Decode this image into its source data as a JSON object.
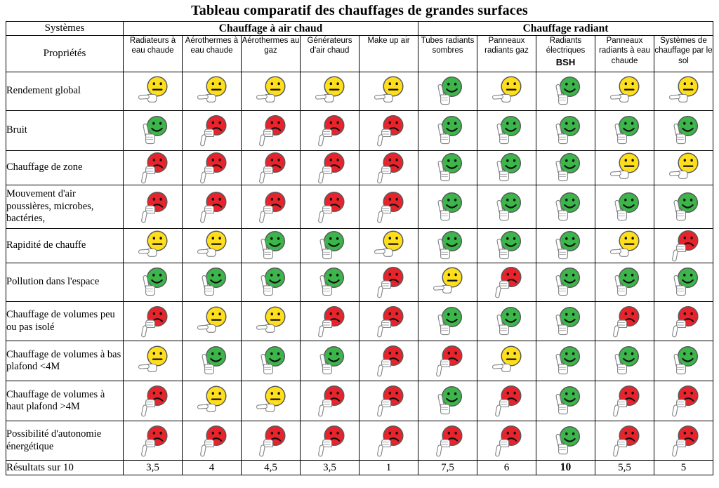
{
  "title": "Tableau comparatif des chauffages de grandes surfaces",
  "colors": {
    "green": "#3cb54b",
    "yellow": "#ffdf1b",
    "red": "#e8232b",
    "face_outline": "#58595b",
    "hand_fill": "#ffffff",
    "hand_stroke": "#808285",
    "feature_ink": "#101010",
    "table_border": "#000000"
  },
  "icons": {
    "green": "smiley-happy-thumb-up-icon",
    "yellow": "smiley-neutral-thumb-side-icon",
    "red": "smiley-sad-thumb-down-icon"
  },
  "header": {
    "systems_label": "Systèmes",
    "properties_label": "Propriétés",
    "groups": [
      {
        "label": "Chauffage à air chaud",
        "span": 5
      },
      {
        "label": "Chauffage radiant",
        "span": 5
      }
    ],
    "columns": [
      {
        "label": "Radiateurs à eau chaude"
      },
      {
        "label": "Aérothermes à eau chaude"
      },
      {
        "label": "Aérothermes au gaz"
      },
      {
        "label": "Générateurs d'air chaud"
      },
      {
        "label": "Make up air"
      },
      {
        "label": "Tubes radiants sombres"
      },
      {
        "label": "Panneaux radiants gaz"
      },
      {
        "label": "Radiants électriques",
        "sublabel": "BSH"
      },
      {
        "label": "Panneaux radiants à eau chaude"
      },
      {
        "label": "Systèmes de chauffage par le sol"
      }
    ]
  },
  "rows": [
    {
      "label": "Rendement global",
      "ratings": [
        "yellow",
        "yellow",
        "yellow",
        "yellow",
        "yellow",
        "green",
        "yellow",
        "green",
        "yellow",
        "yellow"
      ]
    },
    {
      "label": "Bruit",
      "ratings": [
        "green",
        "red",
        "red",
        "red",
        "red",
        "green",
        "green",
        "green",
        "green",
        "green"
      ]
    },
    {
      "label": "Chauffage de zone",
      "ratings": [
        "red",
        "red",
        "red",
        "red",
        "red",
        "green",
        "green",
        "green",
        "yellow",
        "yellow"
      ]
    },
    {
      "label": "Mouvement d'air poussières, microbes, bactéries,",
      "ratings": [
        "red",
        "red",
        "red",
        "red",
        "red",
        "green",
        "green",
        "green",
        "green",
        "green"
      ]
    },
    {
      "label": "Rapidité de chauffe",
      "ratings": [
        "yellow",
        "yellow",
        "green",
        "green",
        "yellow",
        "green",
        "green",
        "green",
        "yellow",
        "red"
      ]
    },
    {
      "label": "Pollution dans l'espace",
      "ratings": [
        "green",
        "green",
        "green",
        "green",
        "red",
        "yellow",
        "red",
        "green",
        "green",
        "green"
      ]
    },
    {
      "label": "Chauffage de volumes peu ou pas isolé",
      "ratings": [
        "red",
        "yellow",
        "yellow",
        "red",
        "red",
        "green",
        "green",
        "green",
        "red",
        "red"
      ]
    },
    {
      "label": "Chauffage de volumes à bas plafond <4M",
      "ratings": [
        "yellow",
        "green",
        "green",
        "green",
        "red",
        "red",
        "yellow",
        "green",
        "green",
        "green"
      ]
    },
    {
      "label": "Chauffage de volumes à haut plafond >4M",
      "ratings": [
        "red",
        "yellow",
        "yellow",
        "red",
        "red",
        "green",
        "red",
        "green",
        "red",
        "red"
      ]
    },
    {
      "label": "Possibilité d'autonomie énergétique",
      "ratings": [
        "red",
        "red",
        "red",
        "red",
        "red",
        "red",
        "red",
        "green",
        "red",
        "red"
      ]
    }
  ],
  "results": {
    "label": "Résultats sur 10",
    "values": [
      "3,5",
      "4",
      "4,5",
      "3,5",
      "1",
      "7,5",
      "6",
      "10",
      "5,5",
      "5"
    ],
    "bold_index": 7
  }
}
